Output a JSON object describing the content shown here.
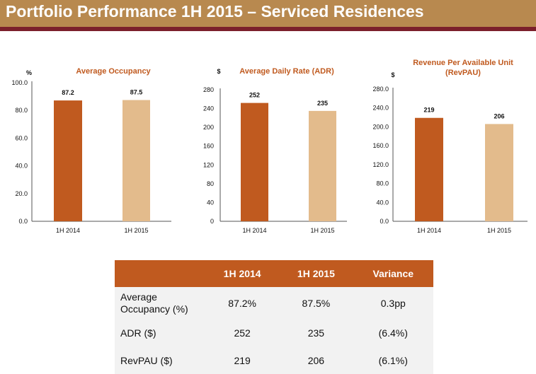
{
  "header": {
    "title": "Portfolio Performance 1H 2015 – Serviced Residences"
  },
  "colors": {
    "header_bg": "#b8894f",
    "header_rule": "#7b1f2b",
    "title_accent": "#c05a1f",
    "bar_2014": "#c05a1f",
    "bar_2015": "#e3bb8c",
    "table_header": "#c05a1f",
    "table_body": "#f2f2f2"
  },
  "chart_data": [
    {
      "type": "bar",
      "title": "Average Occupancy",
      "ylabel": "%",
      "categories": [
        "1H 2014",
        "1H 2015"
      ],
      "values": [
        87.2,
        87.5
      ],
      "value_labels": [
        "87.2",
        "87.5"
      ],
      "ylim": [
        0,
        100
      ],
      "yticks": [
        "0.0",
        "20.0",
        "40.0",
        "60.0",
        "80.0",
        "100.0"
      ],
      "grid": false
    },
    {
      "type": "bar",
      "title": "Average Daily Rate (ADR)",
      "ylabel": "$",
      "categories": [
        "1H 2014",
        "1H 2015"
      ],
      "values": [
        252,
        235
      ],
      "value_labels": [
        "252",
        "235"
      ],
      "ylim": [
        0,
        280
      ],
      "yticks": [
        "0",
        "40",
        "80",
        "120",
        "160",
        "200",
        "240",
        "280"
      ],
      "grid": false
    },
    {
      "type": "bar",
      "title": "Revenue Per Available Unit (RevPAU)",
      "title_lines": [
        "Revenue Per Available Unit",
        "(RevPAU)"
      ],
      "ylabel": "$",
      "categories": [
        "1H 2014",
        "1H 2015"
      ],
      "values": [
        219,
        206
      ],
      "value_labels": [
        "219",
        "206"
      ],
      "ylim": [
        0,
        280
      ],
      "yticks": [
        "0.0",
        "40.0",
        "80.0",
        "120.0",
        "160.0",
        "200.0",
        "240.0",
        "280.0"
      ],
      "grid": false
    }
  ],
  "table": {
    "columns": [
      "",
      "1H 2014",
      "1H 2015",
      "Variance"
    ],
    "rows": [
      {
        "label": "Average Occupancy (%)",
        "label_lines": [
          "Average",
          "Occupancy (%)"
        ],
        "v2014": "87.2%",
        "v2015": "87.5%",
        "variance": "0.3pp"
      },
      {
        "label": "ADR ($)",
        "v2014": "252",
        "v2015": "235",
        "variance": "(6.4%)"
      },
      {
        "label": "RevPAU ($)",
        "v2014": "219",
        "v2015": "206",
        "variance": "(6.1%)"
      }
    ]
  }
}
